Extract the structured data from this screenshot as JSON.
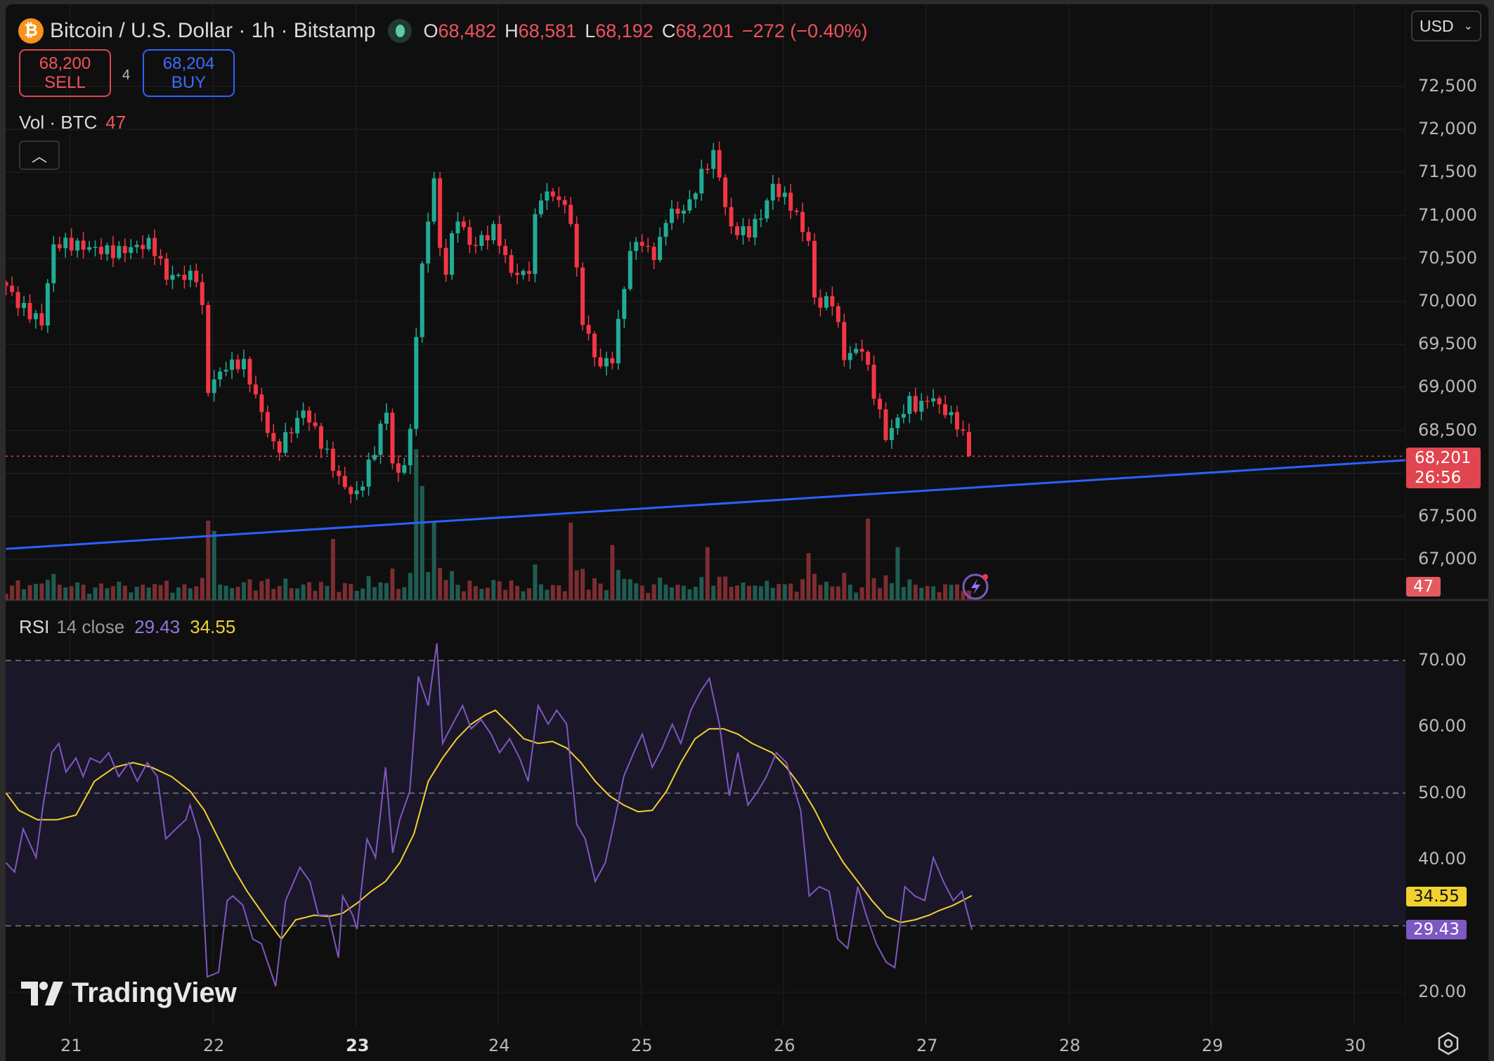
{
  "header": {
    "symbol_icon": "bitcoin-icon",
    "title": "Bitcoin / U.S. Dollar · 1h · Bitstamp",
    "market_status_icon": "live-dot-icon",
    "ohlc": {
      "o_label": "O",
      "o": "68,482",
      "h_label": "H",
      "h": "68,581",
      "l_label": "L",
      "l": "68,192",
      "c_label": "C",
      "c": "68,201",
      "change": "−272 (−0.40%)"
    }
  },
  "trade": {
    "sell_price": "68,200",
    "sell_label": "SELL",
    "spread": "4",
    "buy_price": "68,204",
    "buy_label": "BUY"
  },
  "volume_legend": {
    "label": "Vol · BTC",
    "value": "47"
  },
  "collapse_icon": "chevron-up-icon",
  "currency_select": {
    "value": "USD"
  },
  "price_axis": {
    "ticks": [
      "72,500",
      "72,000",
      "71,500",
      "71,000",
      "70,500",
      "70,000",
      "69,500",
      "69,000",
      "68,500",
      "67,500",
      "67,000"
    ],
    "last_price": "68,201",
    "countdown": "26:56",
    "volume_badge": "47"
  },
  "rsi_legend": {
    "name": "RSI",
    "params": "14 close",
    "rsi": "29.43",
    "ma": "34.55"
  },
  "rsi_axis": {
    "ticks": [
      "70.00",
      "60.00",
      "50.00",
      "40.00",
      "20.00"
    ],
    "rsi_badge": "29.43",
    "ma_badge": "34.55"
  },
  "time_axis": {
    "ticks": [
      "21",
      "22",
      "23",
      "24",
      "25",
      "26",
      "27",
      "28",
      "29",
      "30"
    ],
    "bold_tick": "23"
  },
  "branding": {
    "logo_text": "TradingView"
  },
  "colors": {
    "up": "#22ab94",
    "down": "#f23645",
    "trendline": "#2962ff",
    "rsi": "#7e57c2",
    "rsi_ma": "#f0d12f",
    "rsi_band": "#1a1728",
    "background": "#0f0f0f"
  },
  "chart_data": [
    {
      "type": "candlestick",
      "timeframe": "1h",
      "ylim": [
        66800,
        72700
      ],
      "xlim": [
        20.55,
        30.4
      ],
      "close_path": [
        [
          20.55,
          70183
        ],
        [
          20.64,
          69961
        ],
        [
          20.81,
          69740
        ],
        [
          20.87,
          70627
        ],
        [
          20.94,
          70682
        ],
        [
          21.31,
          70571
        ],
        [
          21.57,
          70682
        ],
        [
          21.67,
          70294
        ],
        [
          21.91,
          70294
        ],
        [
          21.96,
          68964
        ],
        [
          22.08,
          69241
        ],
        [
          22.21,
          69296
        ],
        [
          22.31,
          68853
        ],
        [
          22.44,
          68243
        ],
        [
          22.64,
          68742
        ],
        [
          22.81,
          68188
        ],
        [
          22.91,
          67855
        ],
        [
          23.01,
          67744
        ],
        [
          23.14,
          68299
        ],
        [
          23.21,
          68797
        ],
        [
          23.28,
          67855
        ],
        [
          23.38,
          68354
        ],
        [
          23.44,
          70072
        ],
        [
          23.55,
          71458
        ],
        [
          23.61,
          70183
        ],
        [
          23.71,
          71014
        ],
        [
          23.81,
          70627
        ],
        [
          23.98,
          70848
        ],
        [
          24.08,
          70349
        ],
        [
          24.21,
          70294
        ],
        [
          24.28,
          71236
        ],
        [
          24.41,
          71236
        ],
        [
          24.51,
          70959
        ],
        [
          24.58,
          69850
        ],
        [
          24.7,
          69241
        ],
        [
          24.81,
          69352
        ],
        [
          24.88,
          70183
        ],
        [
          24.95,
          70737
        ],
        [
          25.11,
          70516
        ],
        [
          25.18,
          71014
        ],
        [
          25.32,
          71070
        ],
        [
          25.45,
          71569
        ],
        [
          25.52,
          71735
        ],
        [
          25.62,
          70848
        ],
        [
          25.75,
          70793
        ],
        [
          25.85,
          71014
        ],
        [
          25.92,
          71347
        ],
        [
          26.05,
          71125
        ],
        [
          26.18,
          70682
        ],
        [
          26.22,
          69961
        ],
        [
          26.35,
          70017
        ],
        [
          26.42,
          69352
        ],
        [
          26.55,
          69463
        ],
        [
          26.62,
          69020
        ],
        [
          26.72,
          68409
        ],
        [
          26.82,
          68686
        ],
        [
          26.89,
          68853
        ],
        [
          26.95,
          68742
        ],
        [
          27.02,
          68908
        ],
        [
          27.12,
          68742
        ],
        [
          27.22,
          68576
        ],
        [
          27.32,
          68201
        ]
      ],
      "last_candle": {
        "open": 68482,
        "high": 68581,
        "low": 68192,
        "close": 68201
      },
      "volume_spikes": [
        [
          21.96,
          390
        ],
        [
          21.99,
          340
        ],
        [
          22.86,
          300
        ],
        [
          23.42,
          740
        ],
        [
          23.46,
          560
        ],
        [
          23.55,
          380
        ],
        [
          24.52,
          380
        ],
        [
          24.82,
          270
        ],
        [
          25.45,
          260
        ],
        [
          26.19,
          230
        ],
        [
          26.6,
          400
        ],
        [
          26.82,
          260
        ],
        [
          27.32,
          47
        ]
      ],
      "trendline": [
        [
          20.55,
          67123
        ],
        [
          30.36,
          68154
        ]
      ],
      "current_price_line": 68201
    },
    {
      "type": "line",
      "name": "RSI 14 close",
      "ylim": [
        17,
        75
      ],
      "bands": [
        30,
        50,
        70
      ],
      "series": [
        {
          "name": "RSI",
          "values": [
            [
              20.55,
              39.5
            ],
            [
              20.61,
              38.1
            ],
            [
              20.67,
              44.6
            ],
            [
              20.76,
              40.3
            ],
            [
              20.81,
              48.2
            ],
            [
              20.87,
              56.1
            ],
            [
              20.92,
              57.5
            ],
            [
              20.97,
              53.2
            ],
            [
              21.04,
              55.3
            ],
            [
              21.09,
              52.5
            ],
            [
              21.14,
              55.3
            ],
            [
              21.21,
              54.6
            ],
            [
              21.27,
              56.1
            ],
            [
              21.34,
              52.5
            ],
            [
              21.41,
              54.6
            ],
            [
              21.47,
              51.8
            ],
            [
              21.54,
              54.6
            ],
            [
              21.61,
              52.5
            ],
            [
              21.67,
              43.1
            ],
            [
              21.74,
              44.6
            ],
            [
              21.81,
              46.0
            ],
            [
              21.84,
              48.2
            ],
            [
              21.91,
              43.1
            ],
            [
              21.96,
              22.3
            ],
            [
              22.04,
              23.0
            ],
            [
              22.1,
              33.8
            ],
            [
              22.14,
              34.5
            ],
            [
              22.21,
              33.1
            ],
            [
              22.28,
              28.0
            ],
            [
              22.34,
              27.3
            ],
            [
              22.44,
              20.9
            ],
            [
              22.51,
              33.8
            ],
            [
              22.61,
              38.8
            ],
            [
              22.68,
              36.7
            ],
            [
              22.74,
              31.6
            ],
            [
              22.81,
              31.6
            ],
            [
              22.88,
              25.2
            ],
            [
              22.91,
              34.5
            ],
            [
              22.98,
              31.6
            ],
            [
              23.01,
              29.5
            ],
            [
              23.08,
              43.1
            ],
            [
              23.14,
              40.3
            ],
            [
              23.21,
              53.9
            ],
            [
              23.26,
              41.0
            ],
            [
              23.31,
              46.0
            ],
            [
              23.38,
              50.3
            ],
            [
              23.44,
              67.6
            ],
            [
              23.51,
              63.2
            ],
            [
              23.57,
              72.6
            ],
            [
              23.61,
              57.5
            ],
            [
              23.68,
              60.4
            ],
            [
              23.75,
              63.2
            ],
            [
              23.81,
              59.7
            ],
            [
              23.88,
              61.1
            ],
            [
              23.95,
              58.9
            ],
            [
              24.01,
              56.1
            ],
            [
              24.08,
              58.2
            ],
            [
              24.15,
              55.3
            ],
            [
              24.21,
              51.8
            ],
            [
              24.28,
              63.2
            ],
            [
              24.35,
              60.4
            ],
            [
              24.41,
              62.5
            ],
            [
              24.48,
              60.4
            ],
            [
              24.55,
              45.3
            ],
            [
              24.61,
              43.1
            ],
            [
              24.68,
              36.7
            ],
            [
              24.75,
              39.5
            ],
            [
              24.81,
              45.3
            ],
            [
              24.88,
              52.5
            ],
            [
              24.95,
              56.1
            ],
            [
              25.01,
              58.9
            ],
            [
              25.08,
              53.9
            ],
            [
              25.15,
              56.8
            ],
            [
              25.22,
              60.4
            ],
            [
              25.28,
              57.5
            ],
            [
              25.35,
              62.5
            ],
            [
              25.42,
              65.4
            ],
            [
              25.48,
              67.3
            ],
            [
              25.55,
              60.4
            ],
            [
              25.62,
              49.6
            ],
            [
              25.68,
              56.1
            ],
            [
              25.75,
              48.2
            ],
            [
              25.82,
              50.3
            ],
            [
              25.88,
              52.5
            ],
            [
              25.95,
              56.1
            ],
            [
              26.02,
              54.6
            ],
            [
              26.12,
              47.4
            ],
            [
              26.18,
              34.5
            ],
            [
              26.25,
              35.9
            ],
            [
              26.32,
              35.2
            ],
            [
              26.38,
              28.0
            ],
            [
              26.45,
              26.6
            ],
            [
              26.52,
              35.9
            ],
            [
              26.58,
              31.6
            ],
            [
              26.65,
              27.3
            ],
            [
              26.72,
              24.5
            ],
            [
              26.78,
              23.7
            ],
            [
              26.85,
              35.9
            ],
            [
              26.92,
              34.5
            ],
            [
              26.99,
              33.8
            ],
            [
              27.05,
              40.3
            ],
            [
              27.12,
              36.7
            ],
            [
              27.19,
              33.8
            ],
            [
              27.25,
              35.2
            ],
            [
              27.32,
              29.43
            ]
          ]
        },
        {
          "name": "RSI-based MA",
          "values": [
            [
              20.55,
              50.0
            ],
            [
              20.64,
              47.4
            ],
            [
              20.77,
              46.0
            ],
            [
              20.91,
              46.0
            ],
            [
              21.04,
              46.7
            ],
            [
              21.17,
              51.8
            ],
            [
              21.31,
              53.9
            ],
            [
              21.44,
              54.6
            ],
            [
              21.57,
              53.9
            ],
            [
              21.71,
              52.5
            ],
            [
              21.84,
              50.3
            ],
            [
              21.94,
              47.4
            ],
            [
              22.04,
              43.1
            ],
            [
              22.14,
              38.8
            ],
            [
              22.24,
              35.2
            ],
            [
              22.38,
              30.9
            ],
            [
              22.48,
              28.0
            ],
            [
              22.58,
              30.9
            ],
            [
              22.71,
              31.6
            ],
            [
              22.81,
              31.4
            ],
            [
              22.91,
              31.9
            ],
            [
              23.01,
              33.4
            ],
            [
              23.11,
              35.2
            ],
            [
              23.21,
              36.7
            ],
            [
              23.31,
              39.5
            ],
            [
              23.41,
              43.9
            ],
            [
              23.51,
              51.8
            ],
            [
              23.61,
              55.3
            ],
            [
              23.71,
              58.2
            ],
            [
              23.81,
              60.4
            ],
            [
              23.91,
              61.8
            ],
            [
              23.98,
              62.5
            ],
            [
              24.08,
              60.4
            ],
            [
              24.18,
              58.2
            ],
            [
              24.28,
              57.5
            ],
            [
              24.38,
              57.8
            ],
            [
              24.48,
              56.8
            ],
            [
              24.58,
              54.6
            ],
            [
              24.68,
              51.8
            ],
            [
              24.78,
              49.6
            ],
            [
              24.88,
              48.2
            ],
            [
              24.98,
              47.2
            ],
            [
              25.08,
              47.4
            ],
            [
              25.18,
              50.3
            ],
            [
              25.28,
              54.6
            ],
            [
              25.38,
              58.2
            ],
            [
              25.48,
              59.7
            ],
            [
              25.58,
              59.7
            ],
            [
              25.68,
              58.9
            ],
            [
              25.78,
              57.5
            ],
            [
              25.92,
              56.1
            ],
            [
              26.02,
              53.9
            ],
            [
              26.12,
              51.0
            ],
            [
              26.22,
              47.4
            ],
            [
              26.32,
              43.1
            ],
            [
              26.42,
              39.5
            ],
            [
              26.52,
              36.7
            ],
            [
              26.62,
              33.8
            ],
            [
              26.72,
              31.4
            ],
            [
              26.82,
              30.5
            ],
            [
              26.92,
              30.9
            ],
            [
              27.02,
              31.6
            ],
            [
              27.09,
              32.3
            ],
            [
              27.19,
              33.1
            ],
            [
              27.32,
              34.55
            ]
          ]
        }
      ]
    }
  ]
}
